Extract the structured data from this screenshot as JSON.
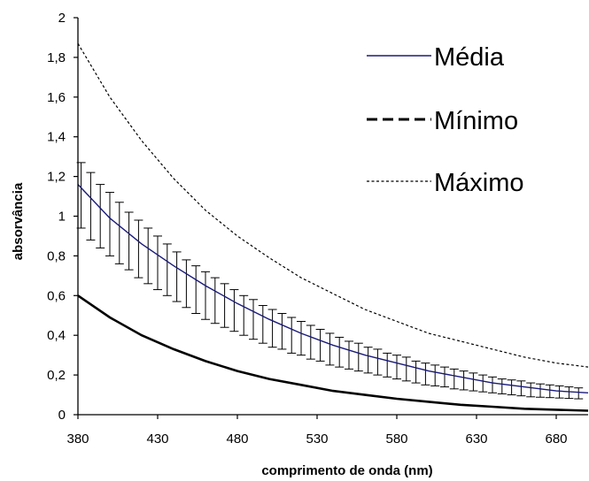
{
  "chart_data": {
    "type": "line",
    "title": "",
    "xlabel": "comprimento de onda (nm)",
    "ylabel": "absorvância",
    "xlim": [
      380,
      700
    ],
    "ylim": [
      0,
      2
    ],
    "x_ticks": [
      "380",
      "430",
      "480",
      "530",
      "580",
      "630",
      "680"
    ],
    "y_ticks": [
      "0",
      "0,2",
      "0,4",
      "0,6",
      "0,8",
      "1",
      "1,2",
      "1,4",
      "1,6",
      "1,8",
      "2"
    ],
    "grid": false,
    "legend_position": "top-right",
    "series": [
      {
        "name": "Média",
        "style": "solid",
        "color": "#1a1a7a",
        "x": [
          380,
          400,
          420,
          440,
          460,
          480,
          500,
          520,
          540,
          560,
          580,
          600,
          620,
          640,
          660,
          680,
          700
        ],
        "values": [
          1.16,
          0.99,
          0.86,
          0.75,
          0.65,
          0.56,
          0.48,
          0.41,
          0.35,
          0.3,
          0.26,
          0.22,
          0.19,
          0.16,
          0.14,
          0.12,
          0.11
        ],
        "error_bars": {
          "x": [
            382,
            388,
            394,
            400,
            406,
            412,
            418,
            424,
            430,
            436,
            442,
            448,
            454,
            460,
            466,
            472,
            478,
            484,
            490,
            496,
            502,
            508,
            514,
            520,
            526,
            532,
            538,
            544,
            550,
            556,
            562,
            568,
            574,
            580,
            586,
            592,
            598,
            604,
            610,
            616,
            622,
            628,
            634,
            640,
            646,
            652,
            658,
            664,
            670,
            676,
            682,
            688,
            694
          ],
          "lower": [
            0.94,
            0.88,
            0.84,
            0.8,
            0.76,
            0.73,
            0.69,
            0.66,
            0.63,
            0.6,
            0.57,
            0.54,
            0.51,
            0.48,
            0.46,
            0.44,
            0.42,
            0.4,
            0.38,
            0.36,
            0.34,
            0.33,
            0.31,
            0.3,
            0.28,
            0.27,
            0.25,
            0.24,
            0.23,
            0.22,
            0.21,
            0.2,
            0.19,
            0.18,
            0.17,
            0.16,
            0.15,
            0.145,
            0.14,
            0.13,
            0.125,
            0.12,
            0.115,
            0.11,
            0.105,
            0.1,
            0.095,
            0.09,
            0.088,
            0.086,
            0.084,
            0.082,
            0.08
          ],
          "upper": [
            1.27,
            1.22,
            1.16,
            1.12,
            1.07,
            1.02,
            0.98,
            0.94,
            0.9,
            0.86,
            0.82,
            0.78,
            0.75,
            0.72,
            0.69,
            0.66,
            0.63,
            0.6,
            0.58,
            0.55,
            0.53,
            0.51,
            0.49,
            0.47,
            0.45,
            0.43,
            0.41,
            0.39,
            0.37,
            0.36,
            0.34,
            0.33,
            0.31,
            0.3,
            0.29,
            0.27,
            0.26,
            0.25,
            0.24,
            0.23,
            0.22,
            0.21,
            0.2,
            0.19,
            0.18,
            0.175,
            0.17,
            0.16,
            0.155,
            0.15,
            0.145,
            0.14,
            0.135
          ]
        }
      },
      {
        "name": "Mínimo",
        "style": "dashed",
        "color": "#000000",
        "x": [
          380,
          400,
          420,
          440,
          460,
          480,
          500,
          520,
          540,
          560,
          580,
          600,
          620,
          640,
          660,
          680,
          700
        ],
        "values": [
          0.6,
          0.49,
          0.4,
          0.33,
          0.27,
          0.22,
          0.18,
          0.15,
          0.12,
          0.1,
          0.08,
          0.065,
          0.05,
          0.04,
          0.03,
          0.025,
          0.02
        ]
      },
      {
        "name": "Máximo",
        "style": "dotted",
        "color": "#000000",
        "x": [
          380,
          400,
          420,
          440,
          460,
          480,
          500,
          520,
          540,
          560,
          580,
          600,
          620,
          640,
          660,
          680,
          700
        ],
        "values": [
          1.87,
          1.6,
          1.38,
          1.19,
          1.03,
          0.9,
          0.79,
          0.69,
          0.61,
          0.53,
          0.47,
          0.41,
          0.37,
          0.33,
          0.29,
          0.26,
          0.24
        ]
      }
    ]
  }
}
